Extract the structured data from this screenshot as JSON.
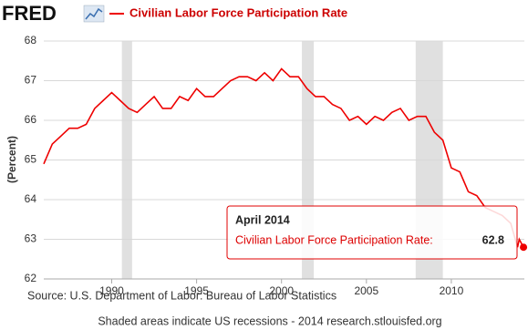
{
  "chart_data": {
    "type": "line",
    "logo": "FRED",
    "title": "Civilian Labor Force Participation Rate",
    "ylabel": "(Percent)",
    "source": "Source: U.S. Department of Labor: Bureau of Labor Statistics",
    "footer": "Shaded areas indicate US recessions - 2014 research.stlouisfed.org",
    "xlim": [
      1986,
      2014.3
    ],
    "xticks": [
      1990,
      1995,
      2000,
      2005,
      2010
    ],
    "ylim": [
      62,
      68
    ],
    "yticks": [
      62,
      63,
      64,
      65,
      66,
      67,
      68
    ],
    "grid": true,
    "recessions": [
      [
        1990.6,
        1991.2
      ],
      [
        2001.2,
        2001.9
      ],
      [
        2007.9,
        2009.5
      ]
    ],
    "series": [
      {
        "name": "Civilian Labor Force Participation Rate",
        "color": "#ee0000",
        "x": [
          1986.0,
          1986.5,
          1987.0,
          1987.5,
          1988.0,
          1988.5,
          1989.0,
          1989.5,
          1990.0,
          1990.5,
          1991.0,
          1991.5,
          1992.0,
          1992.5,
          1993.0,
          1993.5,
          1994.0,
          1994.5,
          1995.0,
          1995.5,
          1996.0,
          1996.5,
          1997.0,
          1997.5,
          1998.0,
          1998.5,
          1999.0,
          1999.5,
          2000.0,
          2000.5,
          2001.0,
          2001.5,
          2002.0,
          2002.5,
          2003.0,
          2003.5,
          2004.0,
          2004.5,
          2005.0,
          2005.5,
          2006.0,
          2006.5,
          2007.0,
          2007.5,
          2008.0,
          2008.5,
          2009.0,
          2009.5,
          2010.0,
          2010.5,
          2011.0,
          2011.5,
          2012.0,
          2012.5,
          2013.0,
          2013.5,
          2013.9,
          2014.0,
          2014.25
        ],
        "values": [
          64.9,
          65.4,
          65.6,
          65.8,
          65.8,
          65.9,
          66.3,
          66.5,
          66.7,
          66.5,
          66.3,
          66.2,
          66.4,
          66.6,
          66.3,
          66.3,
          66.6,
          66.5,
          66.8,
          66.6,
          66.6,
          66.8,
          67.0,
          67.1,
          67.1,
          67.0,
          67.2,
          67.0,
          67.3,
          67.1,
          67.1,
          66.8,
          66.6,
          66.6,
          66.4,
          66.3,
          66.0,
          66.1,
          65.9,
          66.1,
          66.0,
          66.2,
          66.3,
          66.0,
          66.1,
          66.1,
          65.7,
          65.5,
          64.8,
          64.7,
          64.2,
          64.1,
          63.8,
          63.7,
          63.6,
          63.4,
          62.8,
          63.0,
          62.8
        ]
      }
    ],
    "tooltip": {
      "date": "April 2014",
      "label": "Civilian Labor Force Participation Rate:",
      "value": 62.8
    }
  }
}
